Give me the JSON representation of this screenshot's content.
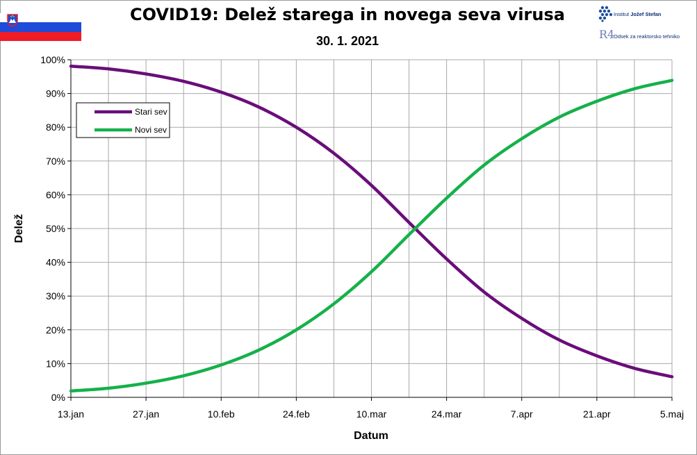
{
  "header": {
    "title": "COVID19: Delež starega in novega seva virusa",
    "subtitle": "30. 1. 2021",
    "logo_ijs_prefix": "Institut ",
    "logo_ijs_name": "Jožef Stefan",
    "logo_r4_mark": "R4",
    "logo_r4_text": "Odsek za reaktorsko tehniko"
  },
  "colors": {
    "stari_sev": "#6a0d7a",
    "novi_sev": "#15b14a",
    "grid": "#a9a9a9"
  },
  "chart_data": {
    "type": "line",
    "title": "COVID19: Delež starega in novega seva virusa",
    "subtitle": "30. 1. 2021",
    "xlabel": "Datum",
    "ylabel": "Delež",
    "x_tick_labels": [
      "13.jan",
      "27.jan",
      "10.feb",
      "24.feb",
      "10.mar",
      "24.mar",
      "7.apr",
      "21.apr",
      "5.maj"
    ],
    "y_tick_labels": [
      "0%",
      "10%",
      "20%",
      "30%",
      "40%",
      "50%",
      "60%",
      "70%",
      "80%",
      "90%",
      "100%"
    ],
    "ylim": [
      0,
      100
    ],
    "grid": true,
    "legend_position": "top-left",
    "x": [
      "13.jan",
      "20.jan",
      "27.jan",
      "3.feb",
      "10.feb",
      "17.feb",
      "24.feb",
      "3.mar",
      "10.mar",
      "17.mar",
      "24.mar",
      "31.mar",
      "7.apr",
      "14.apr",
      "21.apr",
      "28.apr",
      "5.maj"
    ],
    "series": [
      {
        "name": "Stari sev",
        "values": [
          98.1,
          97.3,
          95.8,
          93.6,
          90.4,
          86.0,
          80.0,
          72.3,
          62.8,
          51.8,
          41.0,
          31.2,
          23.4,
          17.0,
          12.3,
          8.6,
          6.1
        ]
      },
      {
        "name": "Novi sev",
        "values": [
          1.9,
          2.7,
          4.2,
          6.4,
          9.6,
          14.0,
          20.0,
          27.7,
          37.2,
          48.2,
          59.0,
          68.8,
          76.6,
          83.0,
          87.7,
          91.4,
          93.9
        ]
      }
    ]
  }
}
